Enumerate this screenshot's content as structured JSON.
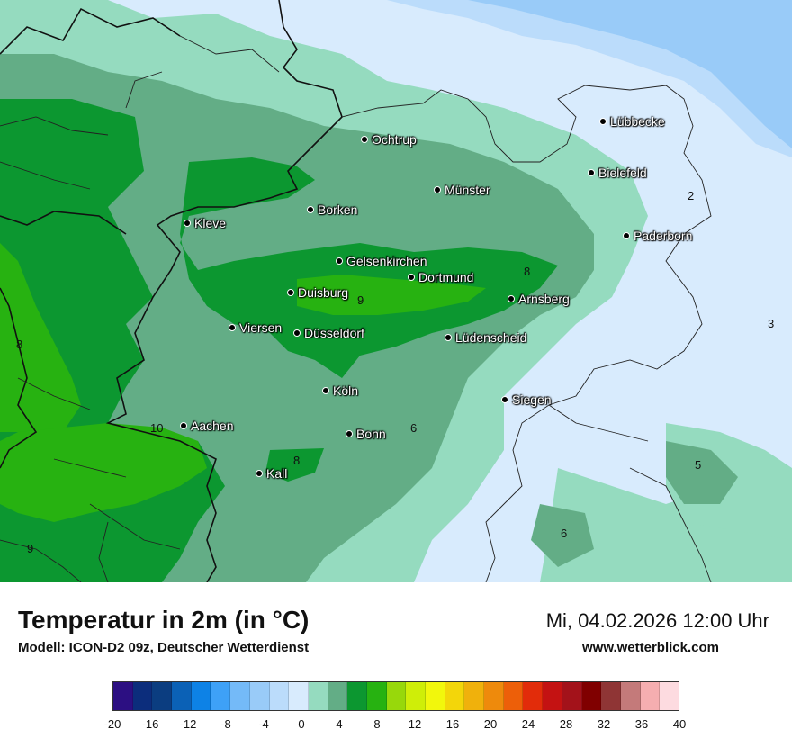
{
  "header": {
    "title": "Temperatur in 2m (in °C)",
    "subtitle": "Modell: ICON-D2 09z, Deutscher Wetterdienst",
    "datetime": "Mi, 04.02.2026 12:00 Uhr",
    "website": "www.wetterblick.com"
  },
  "cities": [
    "Lübbecke",
    "Ochtrup",
    "Bielefeld",
    "Münster",
    "Borken",
    "Kleve",
    "Paderborn",
    "Gelsenkirchen",
    "Dortmund",
    "Duisburg",
    "Arnsberg",
    "Viersen",
    "Düsseldorf",
    "Lüdenscheid",
    "Köln",
    "Siegen",
    "Aachen",
    "Bonn",
    "Kall"
  ],
  "contour_labels": [
    "2",
    "8",
    "9",
    "3",
    "8",
    "10",
    "6",
    "8",
    "5",
    "6",
    "9"
  ],
  "legend": {
    "colors": [
      "#2c0f82",
      "#0c2d7c",
      "#0b3d80",
      "#0b61b6",
      "#0d82e6",
      "#3ea1f7",
      "#74baf8",
      "#99cbf8",
      "#bbdcfb",
      "#d8ebfd",
      "#95dbbf",
      "#63ad86",
      "#0c9730",
      "#27b211",
      "#98d80b",
      "#cfee08",
      "#f2f70c",
      "#f3d60a",
      "#f0b10c",
      "#ee8a0c",
      "#ed5f09",
      "#e22c0a",
      "#c41212",
      "#a3121a",
      "#800000",
      "#8f3535",
      "#c47a7a",
      "#f5aeb0",
      "#fddbe0"
    ],
    "ticks": [
      "-20",
      "-16",
      "-12",
      "-8",
      "-4",
      "0",
      "4",
      "8",
      "12",
      "16",
      "20",
      "24",
      "28",
      "32",
      "36",
      "40"
    ]
  }
}
